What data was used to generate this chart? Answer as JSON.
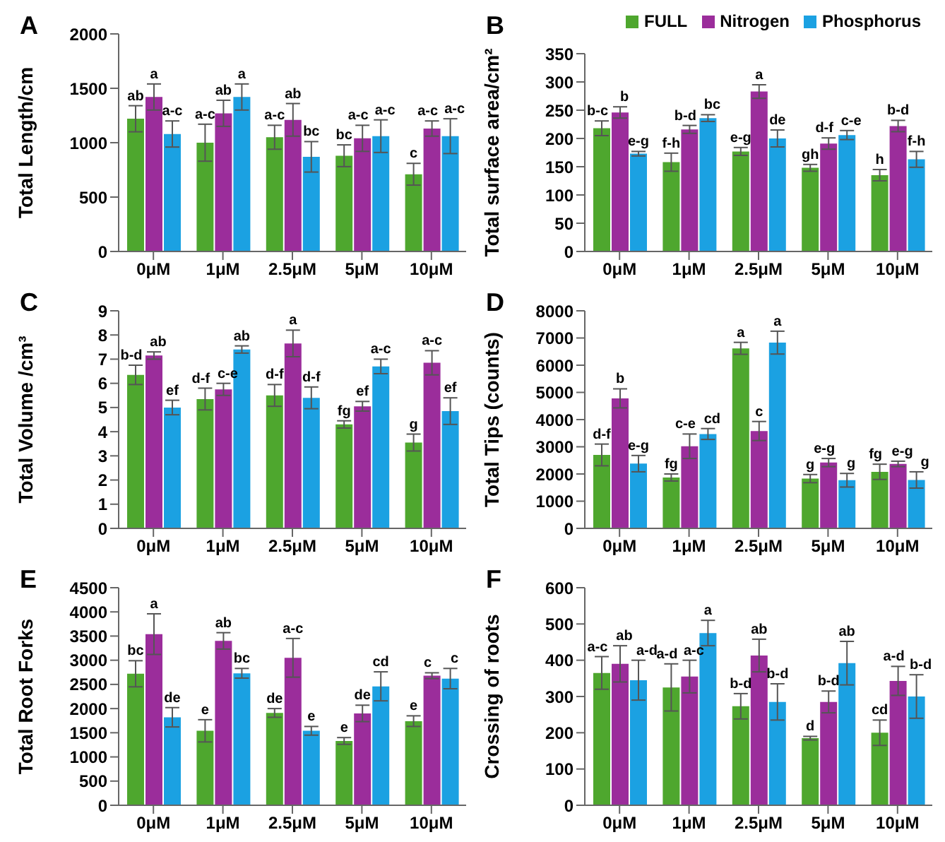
{
  "chart_data": [
    {
      "type": "bar",
      "title": "A",
      "ylabel": "Total Length/cm",
      "categories": [
        "0μM",
        "1μM",
        "2.5μM",
        "5μM",
        "10μM"
      ],
      "ylim": [
        0,
        2000
      ],
      "yticks": [
        0,
        500,
        1000,
        1500,
        2000
      ],
      "legend": false,
      "series": [
        {
          "color": "#4ea72e",
          "values": [
            1220,
            1000,
            1050,
            880,
            710
          ],
          "errors": [
            120,
            170,
            110,
            100,
            100
          ],
          "value_labels": [
            "ab",
            "a-c",
            "a-c",
            "bc",
            "c"
          ]
        },
        {
          "color": "#9b2d9b",
          "values": [
            1420,
            1270,
            1210,
            1040,
            1130
          ],
          "errors": [
            120,
            120,
            150,
            120,
            70
          ],
          "value_labels": [
            "a",
            "ab",
            "ab",
            "a-c",
            "a-c"
          ]
        },
        {
          "color": "#1ba1e2",
          "values": [
            1080,
            1420,
            870,
            1060,
            1060
          ],
          "errors": [
            120,
            120,
            140,
            150,
            160
          ],
          "value_labels": [
            "a-c",
            "a",
            "bc",
            "a-c",
            "a-c"
          ]
        }
      ]
    },
    {
      "type": "bar",
      "title": "B",
      "ylabel": "Total surface area/cm²",
      "categories": [
        "0μM",
        "1μM",
        "2.5μM",
        "5μM",
        "10μM"
      ],
      "ylim": [
        0,
        350
      ],
      "yticks": [
        0,
        50,
        100,
        150,
        200,
        250,
        300,
        350
      ],
      "legend": "top right",
      "series": [
        {
          "name": "FULL",
          "color": "#4ea72e",
          "values": [
            218,
            158,
            177,
            148,
            135
          ],
          "errors": [
            13,
            16,
            7,
            6,
            10
          ],
          "value_labels": [
            "b-c",
            "f-h",
            "e-g",
            "gh",
            "h"
          ]
        },
        {
          "name": "Nitrogen",
          "color": "#9b2d9b",
          "values": [
            246,
            216,
            283,
            191,
            222
          ],
          "errors": [
            10,
            7,
            12,
            10,
            10
          ],
          "value_labels": [
            "b",
            "b-d",
            "a",
            "d-f",
            "b-d"
          ]
        },
        {
          "name": "Phosphorus",
          "color": "#1ba1e2",
          "values": [
            173,
            236,
            200,
            206,
            163
          ],
          "errors": [
            4,
            6,
            15,
            8,
            14
          ],
          "value_labels": [
            "e-g",
            "bc",
            "de",
            "c-e",
            "f-h"
          ]
        }
      ]
    },
    {
      "type": "bar",
      "title": "C",
      "ylabel": "Total Volume /cm³",
      "categories": [
        "0μM",
        "1μM",
        "2.5μM",
        "5μM",
        "10μM"
      ],
      "ylim": [
        0,
        9
      ],
      "yticks": [
        0,
        1,
        2,
        3,
        4,
        5,
        6,
        7,
        8,
        9
      ],
      "legend": false,
      "series": [
        {
          "color": "#4ea72e",
          "values": [
            6.35,
            5.35,
            5.5,
            4.3,
            3.55
          ],
          "errors": [
            0.4,
            0.45,
            0.45,
            0.15,
            0.35
          ],
          "value_labels": [
            "b-d",
            "d-f",
            "d-f",
            "fg",
            "g"
          ]
        },
        {
          "color": "#9b2d9b",
          "values": [
            7.15,
            5.75,
            7.65,
            5.05,
            6.85
          ],
          "errors": [
            0.15,
            0.25,
            0.55,
            0.2,
            0.5
          ],
          "value_labels": [
            "ab",
            "c-e",
            "a",
            "ef",
            "a-c"
          ]
        },
        {
          "color": "#1ba1e2",
          "values": [
            5.0,
            7.4,
            5.4,
            6.7,
            4.85
          ],
          "errors": [
            0.3,
            0.15,
            0.45,
            0.3,
            0.55
          ],
          "value_labels": [
            "ef",
            "ab",
            "d-f",
            "a-c",
            "ef"
          ]
        }
      ]
    },
    {
      "type": "bar",
      "title": "D",
      "ylabel": "Total Tips (counts)",
      "categories": [
        "0μM",
        "1μM",
        "2.5μM",
        "5μM",
        "10μM"
      ],
      "ylim": [
        0,
        8000
      ],
      "yticks": [
        0,
        1000,
        2000,
        3000,
        4000,
        5000,
        6000,
        7000,
        8000
      ],
      "legend": false,
      "series": [
        {
          "color": "#4ea72e",
          "values": [
            2700,
            1870,
            6620,
            1830,
            2080
          ],
          "errors": [
            400,
            130,
            220,
            150,
            280
          ],
          "value_labels": [
            "d-f",
            "fg",
            "a",
            "g",
            "fg"
          ]
        },
        {
          "color": "#9b2d9b",
          "values": [
            4780,
            3020,
            3580,
            2420,
            2370
          ],
          "errors": [
            350,
            450,
            350,
            150,
            100
          ],
          "value_labels": [
            "b",
            "c-e",
            "c",
            "e-g",
            "e-g"
          ]
        },
        {
          "color": "#1ba1e2",
          "values": [
            2380,
            3470,
            6830,
            1770,
            1780
          ],
          "errors": [
            300,
            200,
            420,
            250,
            300
          ],
          "value_labels": [
            "e-g",
            "cd",
            "a",
            "g",
            "g"
          ]
        }
      ]
    },
    {
      "type": "bar",
      "title": "E",
      "ylabel": "Total Root Forks",
      "categories": [
        "0μM",
        "1μM",
        "2.5μM",
        "5μM",
        "10μM"
      ],
      "ylim": [
        0,
        4500
      ],
      "yticks": [
        0,
        500,
        1000,
        1500,
        2000,
        2500,
        3000,
        3500,
        4000,
        4500
      ],
      "legend": false,
      "series": [
        {
          "color": "#4ea72e",
          "values": [
            2720,
            1540,
            1910,
            1330,
            1740
          ],
          "errors": [
            270,
            230,
            90,
            70,
            110
          ],
          "value_labels": [
            "bc",
            "e",
            "de",
            "e",
            "e"
          ]
        },
        {
          "color": "#9b2d9b",
          "values": [
            3540,
            3400,
            3050,
            1900,
            2680
          ],
          "errors": [
            420,
            170,
            400,
            170,
            60
          ],
          "value_labels": [
            "a",
            "ab",
            "a-c",
            "de",
            "c"
          ]
        },
        {
          "color": "#1ba1e2",
          "values": [
            1820,
            2730,
            1540,
            2460,
            2620
          ],
          "errors": [
            200,
            100,
            90,
            300,
            210
          ],
          "value_labels": [
            "de",
            "bc",
            "e",
            "cd",
            "c"
          ]
        }
      ]
    },
    {
      "type": "bar",
      "title": "F",
      "ylabel": "Crossing of roots",
      "categories": [
        "0μM",
        "1μM",
        "2.5μM",
        "5μM",
        "10μM"
      ],
      "ylim": [
        0,
        600
      ],
      "yticks": [
        0,
        100,
        200,
        300,
        400,
        500,
        600
      ],
      "legend": false,
      "series": [
        {
          "color": "#4ea72e",
          "values": [
            365,
            325,
            273,
            185,
            200
          ],
          "errors": [
            45,
            65,
            35,
            5,
            35
          ],
          "value_labels": [
            "a-c",
            "a-d",
            "b-d",
            "d",
            "cd"
          ]
        },
        {
          "color": "#9b2d9b",
          "values": [
            390,
            355,
            413,
            285,
            343
          ],
          "errors": [
            50,
            45,
            45,
            30,
            40
          ],
          "value_labels": [
            "ab",
            "a-c",
            "ab",
            "b-d",
            "a-d"
          ]
        },
        {
          "color": "#1ba1e2",
          "values": [
            345,
            475,
            285,
            392,
            300
          ],
          "errors": [
            55,
            35,
            50,
            60,
            60
          ],
          "value_labels": [
            "a-d",
            "a",
            "b-d",
            "ab",
            "b-d"
          ]
        }
      ]
    }
  ]
}
